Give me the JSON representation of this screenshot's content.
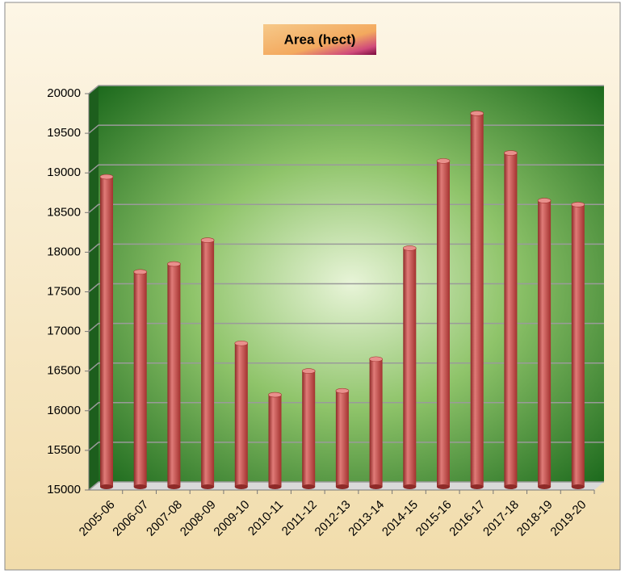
{
  "chart_data": {
    "type": "bar",
    "title": "Area (hect)",
    "categories": [
      "2005-06",
      "2006-07",
      "2007-08",
      "2008-09",
      "2009-10",
      "2010-11",
      "2011-12",
      "2012-13",
      "2013-14",
      "2014-15",
      "2015-16",
      "2016-17",
      "2017-18",
      "2018-19",
      "2019-20"
    ],
    "values": [
      18900,
      17700,
      17800,
      18100,
      16800,
      16150,
      16450,
      16200,
      16600,
      18000,
      19100,
      19700,
      19200,
      18600,
      18550
    ],
    "color": "#c0504d",
    "ylim": [
      15000,
      20000
    ],
    "yticks": [
      15000,
      15500,
      16000,
      16500,
      17000,
      17500,
      18000,
      18500,
      19000,
      19500,
      20000
    ],
    "grid": true
  }
}
